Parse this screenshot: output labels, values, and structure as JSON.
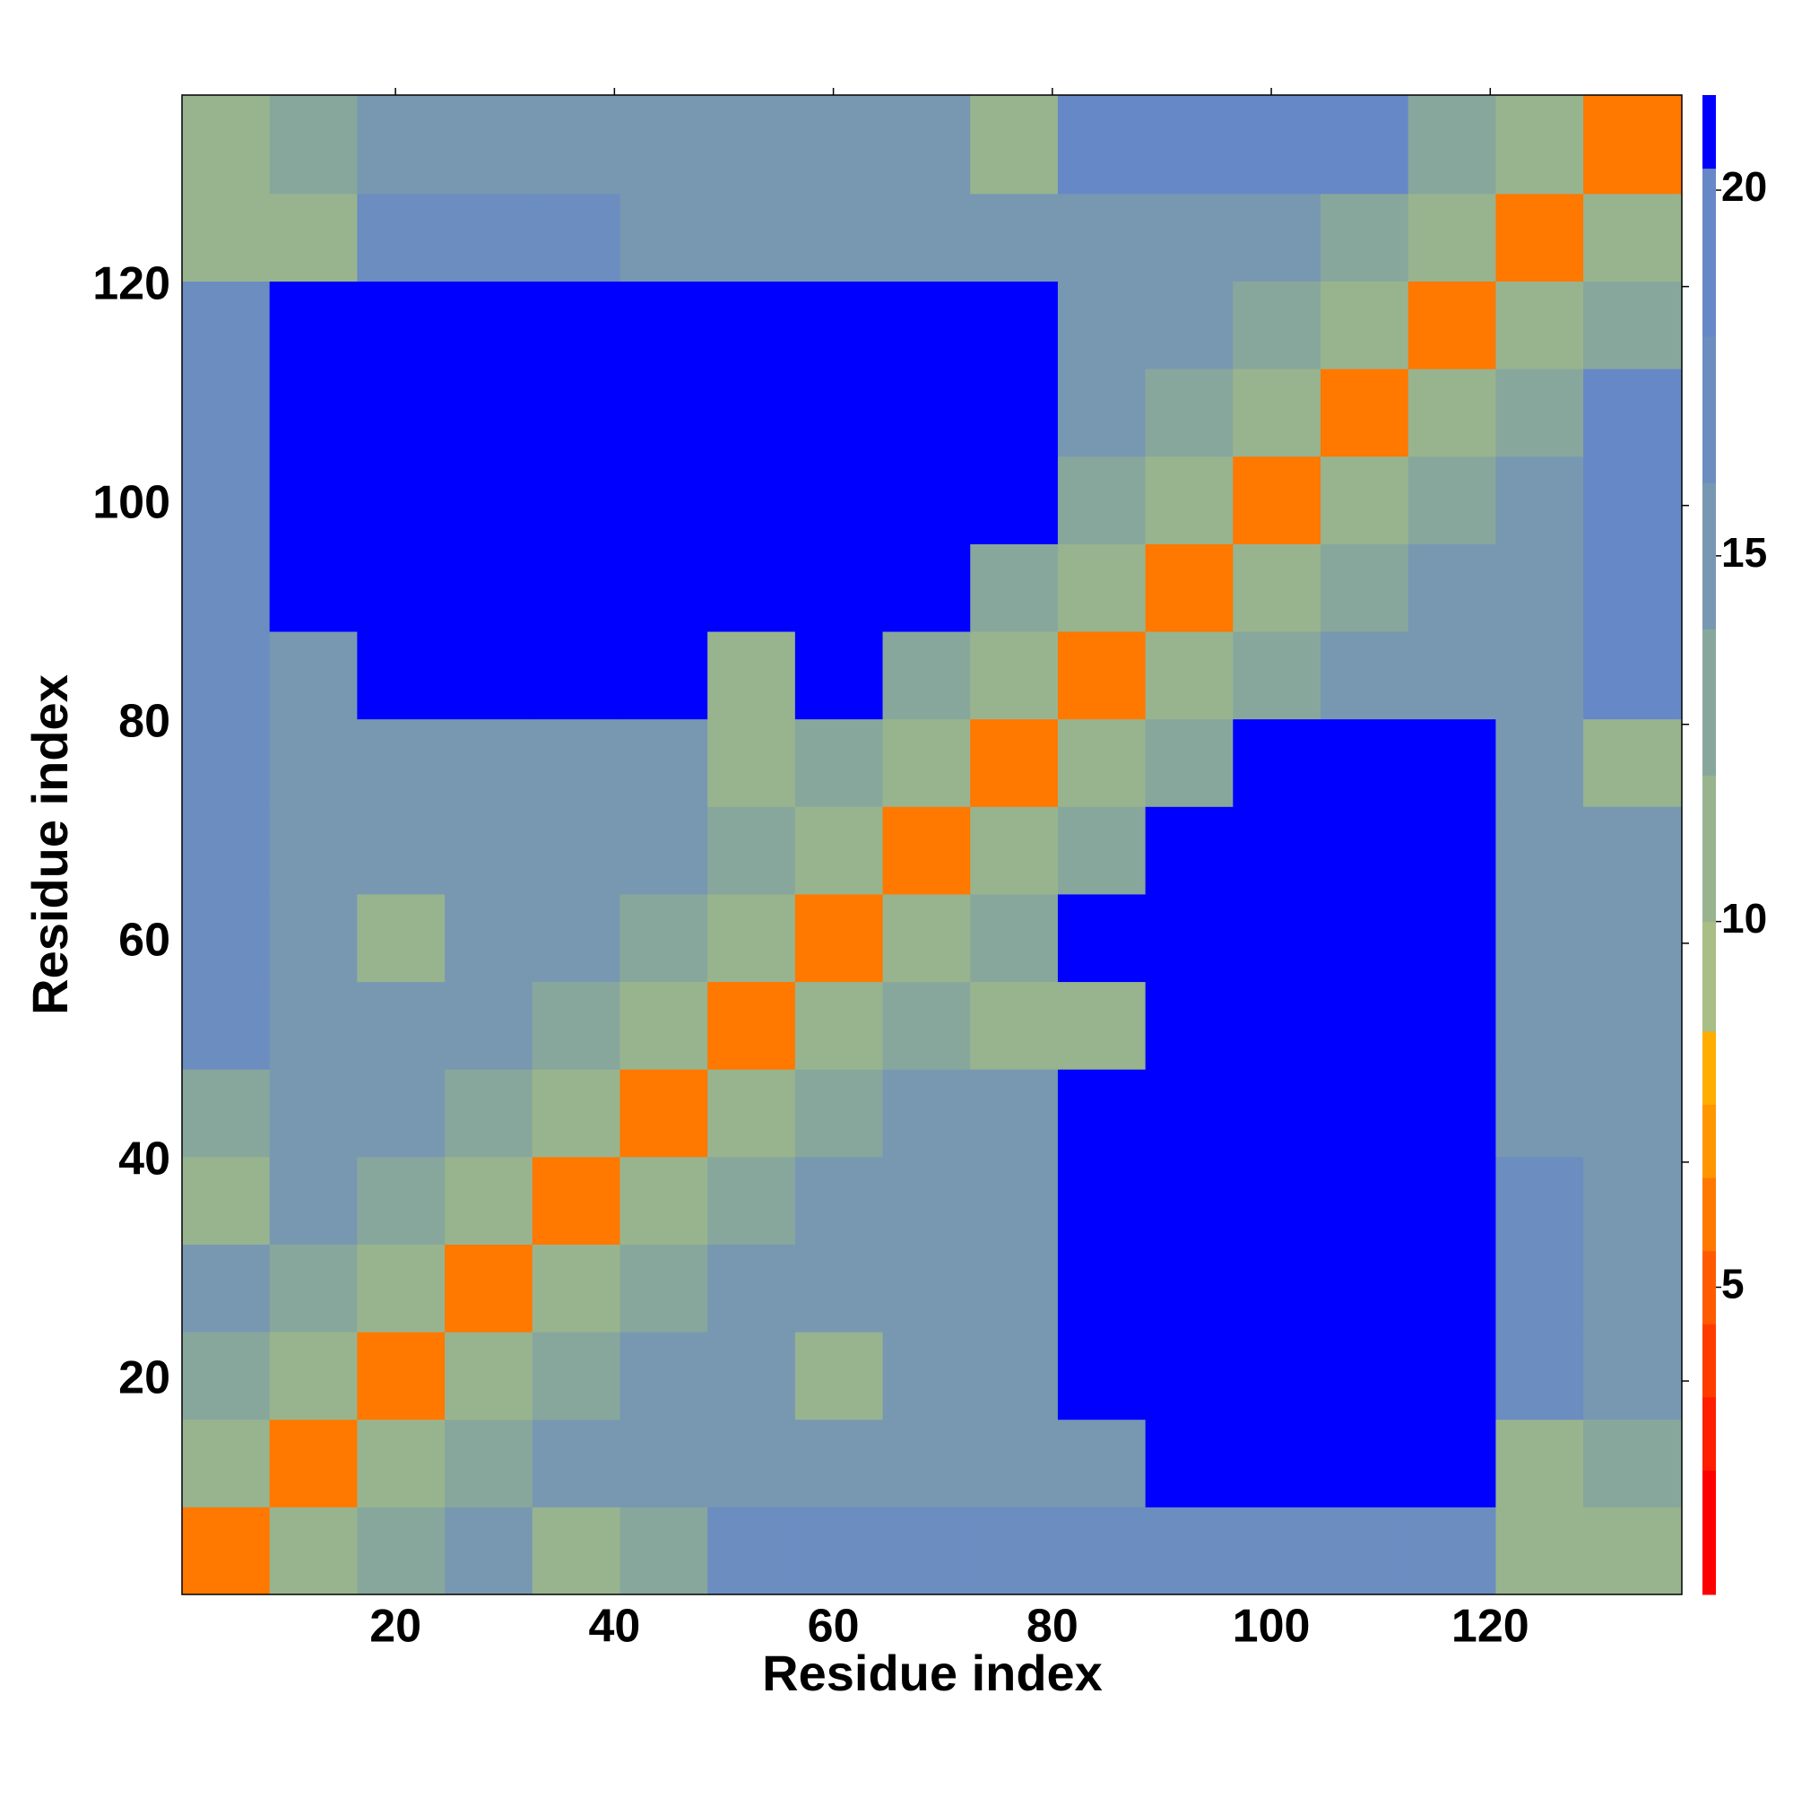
{
  "chart_data": {
    "type": "heatmap",
    "xlabel": "Residue index",
    "ylabel": "Residue index",
    "xbins": [
      0.5,
      8.5,
      16.5,
      24.5,
      32.5,
      40.5,
      48.5,
      56.5,
      64.5,
      72.5,
      80.5,
      88.5,
      96.5,
      104.5,
      112.5,
      120.5,
      128.5,
      137.5
    ],
    "ybins": [
      0.5,
      8.5,
      16.5,
      24.5,
      32.5,
      40.5,
      48.5,
      56.5,
      64.5,
      72.5,
      80.5,
      88.5,
      96.5,
      104.5,
      112.5,
      120.5,
      128.5,
      137.5
    ],
    "values": [
      [
        6,
        11,
        14,
        16,
        12,
        13,
        17,
        17,
        17,
        17,
        17,
        17,
        17,
        17,
        17,
        11,
        11
      ],
      [
        11,
        6,
        11,
        14,
        16,
        16,
        16,
        16,
        16,
        16,
        16,
        21,
        21,
        21,
        21,
        12,
        13
      ],
      [
        14,
        11,
        6,
        11,
        14,
        16,
        16,
        12,
        16,
        16,
        21,
        21,
        21,
        21,
        21,
        17,
        16
      ],
      [
        16,
        14,
        11,
        6,
        11,
        14,
        16,
        16,
        16,
        16,
        21,
        21,
        21,
        21,
        21,
        17,
        16
      ],
      [
        12,
        16,
        14,
        11,
        6,
        11,
        14,
        16,
        16,
        16,
        21,
        21,
        21,
        21,
        21,
        17,
        16
      ],
      [
        13,
        16,
        16,
        14,
        11,
        6,
        11,
        14,
        16,
        16,
        21,
        21,
        21,
        21,
        21,
        15,
        16
      ],
      [
        17,
        16,
        16,
        16,
        14,
        11,
        6,
        11,
        14,
        12,
        12,
        21,
        21,
        21,
        21,
        15,
        16
      ],
      [
        17,
        16,
        12,
        16,
        16,
        14,
        11,
        6,
        11,
        14,
        21,
        21,
        21,
        21,
        21,
        16,
        15
      ],
      [
        17,
        16,
        16,
        16,
        16,
        16,
        14,
        11,
        6,
        11,
        14,
        21,
        21,
        21,
        21,
        16,
        16
      ],
      [
        17,
        16,
        16,
        16,
        16,
        16,
        12,
        14,
        11,
        6,
        11,
        14,
        21,
        21,
        21,
        16,
        12
      ],
      [
        17,
        16,
        21,
        21,
        21,
        21,
        12,
        21,
        14,
        11,
        6,
        11,
        14,
        16,
        16,
        16,
        19
      ],
      [
        17,
        21,
        21,
        21,
        21,
        21,
        21,
        21,
        21,
        14,
        11,
        6,
        11,
        14,
        16,
        16,
        19
      ],
      [
        17,
        21,
        21,
        21,
        21,
        21,
        21,
        21,
        21,
        21,
        14,
        11,
        6,
        11,
        14,
        16,
        19
      ],
      [
        17,
        21,
        21,
        21,
        21,
        21,
        21,
        21,
        21,
        21,
        16,
        14,
        11,
        6,
        11,
        14,
        19
      ],
      [
        17,
        21,
        21,
        21,
        21,
        21,
        21,
        21,
        21,
        21,
        16,
        16,
        14,
        11,
        6,
        11,
        14
      ],
      [
        11,
        12,
        17,
        17,
        17,
        15,
        15,
        16,
        16,
        16,
        16,
        16,
        16,
        14,
        11,
        6,
        11
      ],
      [
        11,
        13,
        16,
        16,
        16,
        16,
        16,
        15,
        16,
        12,
        19,
        19,
        19,
        19,
        14,
        11,
        6
      ]
    ],
    "xlim": [
      0.5,
      137.5
    ],
    "ylim": [
      0.5,
      137.5
    ],
    "xticks": [
      20,
      40,
      60,
      80,
      100,
      120
    ],
    "yticks": [
      20,
      40,
      60,
      80,
      100,
      120
    ],
    "clim": [
      0.8,
      21.3
    ],
    "cticks": [
      5,
      10,
      15,
      20
    ],
    "levels": [
      0.8,
      2.5,
      3.5,
      4.5,
      5.5,
      6.5,
      7.5,
      8.5,
      10,
      12,
      14,
      16,
      18,
      20.3,
      21.3
    ],
    "colors": [
      "#ff0000",
      "#ff1e00",
      "#ff3c00",
      "#ff5a00",
      "#ff7800",
      "#ff9600",
      "#ffad00",
      "#a9bd86",
      "#98b48f",
      "#88a79c",
      "#7898b2",
      "#6b8dc0",
      "#6688c6",
      "#0000ff"
    ]
  }
}
